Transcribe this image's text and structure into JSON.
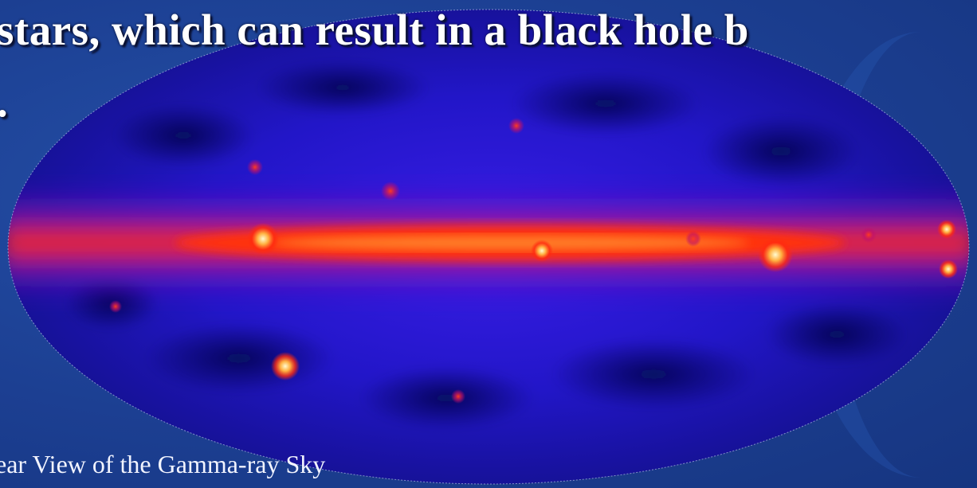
{
  "slide": {
    "headline_line1": "stars, which can result in a black hole b",
    "headline_line2": ".",
    "caption": "ear View of the Gamma-ray Sky"
  },
  "image": {
    "subject": "gamma-ray all-sky map",
    "projection": "ellipse",
    "colors": {
      "background": "#1b3f93",
      "map_deep": "#0a1270",
      "map_mid": "#2a1fd8",
      "band_magenta": "#b0108a",
      "band_red": "#ff2a10",
      "band_core": "#ffb04a",
      "hot_spot": "#fff6b0"
    }
  }
}
